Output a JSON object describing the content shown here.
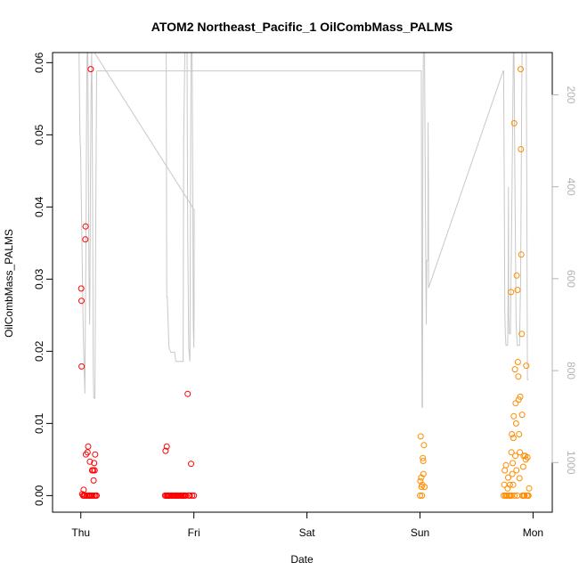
{
  "chart_data": {
    "type": "scatter",
    "title": "ATOM2 Northeast_Pacific_1 OilCombMass_PALMS",
    "xlabel": "Date",
    "ylabel": "OilCombMass_PALMS",
    "x_unit": "days",
    "x_ticks": [
      {
        "value": 0,
        "label": "Thu"
      },
      {
        "value": 1,
        "label": "Fri"
      },
      {
        "value": 2,
        "label": "Sat"
      },
      {
        "value": 3,
        "label": "Sun"
      },
      {
        "value": 4,
        "label": "Mon"
      }
    ],
    "xlim": [
      -0.25,
      4.17
    ],
    "ylim": [
      -0.0023,
      0.0614
    ],
    "y_ticks": [
      0.0,
      0.01,
      0.02,
      0.03,
      0.04,
      0.05,
      0.06
    ],
    "y_tick_labels": [
      "0.00",
      "0.01",
      "0.02",
      "0.03",
      "0.04",
      "0.05",
      "0.06"
    ],
    "y2lim": [
      1108,
      108
    ],
    "y2_ticks": [
      200,
      400,
      600,
      800,
      1000
    ],
    "y2_tick_labels": [
      "200",
      "400",
      "600",
      "800",
      "1000"
    ],
    "colors": {
      "series1": "#ff0000",
      "series2": "#ff8c00",
      "line": "#c8c8c8",
      "axis": "#000000",
      "right_axis": "#b3b3b3"
    },
    "series": [
      {
        "color": "#ff0000",
        "points": [
          [
            0.004,
            0.0287
          ],
          [
            0.006,
            0.027
          ],
          [
            0.007,
            0.0179
          ],
          [
            0.012,
            0.0002
          ],
          [
            0.02,
            0.0
          ],
          [
            0.025,
            0.0008
          ],
          [
            0.03,
            0.0
          ],
          [
            0.035,
            0.0
          ],
          [
            0.04,
            0.0355
          ],
          [
            0.042,
            0.0373
          ],
          [
            0.045,
            0.0057
          ],
          [
            0.05,
            0.0
          ],
          [
            0.055,
            0.0
          ],
          [
            0.06,
            0.006
          ],
          [
            0.065,
            0.0068
          ],
          [
            0.07,
            0.0
          ],
          [
            0.075,
            0.0
          ],
          [
            0.08,
            0.0047
          ],
          [
            0.085,
            0.0
          ],
          [
            0.088,
            0.0591
          ],
          [
            0.095,
            0.0
          ],
          [
            0.1,
            0.0035
          ],
          [
            0.105,
            0.0
          ],
          [
            0.11,
            0.0035
          ],
          [
            0.113,
            0.0021
          ],
          [
            0.118,
            0.0045
          ],
          [
            0.12,
            0.0
          ],
          [
            0.123,
            0.0035
          ],
          [
            0.127,
            0.0057
          ],
          [
            0.13,
            0.0
          ],
          [
            0.14,
            0.0
          ],
          [
            0.745,
            0.0
          ],
          [
            0.75,
            0.0062
          ],
          [
            0.755,
            0.0
          ],
          [
            0.76,
            0.0068
          ],
          [
            0.765,
            0.0
          ],
          [
            0.77,
            0.0
          ],
          [
            0.775,
            0.0
          ],
          [
            0.78,
            0.0
          ],
          [
            0.79,
            0.0
          ],
          [
            0.8,
            0.0
          ],
          [
            0.81,
            0.0
          ],
          [
            0.82,
            0.0
          ],
          [
            0.83,
            0.0
          ],
          [
            0.84,
            0.0
          ],
          [
            0.85,
            0.0
          ],
          [
            0.86,
            0.0
          ],
          [
            0.87,
            0.0
          ],
          [
            0.88,
            0.0
          ],
          [
            0.89,
            0.0
          ],
          [
            0.9,
            0.0
          ],
          [
            0.905,
            0.0
          ],
          [
            0.91,
            0.0
          ],
          [
            0.92,
            0.0
          ],
          [
            0.93,
            0.0
          ],
          [
            0.945,
            0.0141
          ],
          [
            0.955,
            0.0
          ],
          [
            0.965,
            0.0
          ],
          [
            0.975,
            0.0044
          ],
          [
            0.985,
            0.0
          ],
          [
            1.0,
            0.0
          ]
        ]
      },
      {
        "color": "#ff8c00",
        "points": [
          [
            3.0,
            0.0
          ],
          [
            3.003,
            0.002
          ],
          [
            3.006,
            0.0082
          ],
          [
            3.01,
            0.0025
          ],
          [
            3.013,
            0.0012
          ],
          [
            3.017,
            0.0
          ],
          [
            3.02,
            0.0015
          ],
          [
            3.025,
            0.0052
          ],
          [
            3.028,
            0.0048
          ],
          [
            3.03,
            0.003
          ],
          [
            3.035,
            0.007
          ],
          [
            3.04,
            0.0012
          ],
          [
            3.74,
            0.0
          ],
          [
            3.745,
            0.0015
          ],
          [
            3.75,
            0.0035
          ],
          [
            3.755,
            0.0
          ],
          [
            3.76,
            0.0042
          ],
          [
            3.765,
            0.0
          ],
          [
            3.77,
            0.0
          ],
          [
            3.775,
            0.001
          ],
          [
            3.78,
            0.0025
          ],
          [
            3.785,
            0.0
          ],
          [
            3.79,
            0.0
          ],
          [
            3.795,
            0.0015
          ],
          [
            3.8,
            0.0
          ],
          [
            3.805,
            0.0282
          ],
          [
            3.808,
            0.006
          ],
          [
            3.81,
            0.0
          ],
          [
            3.813,
            0.0085
          ],
          [
            3.816,
            0.003
          ],
          [
            3.82,
            0.0045
          ],
          [
            3.823,
            0.0015
          ],
          [
            3.826,
            0.008
          ],
          [
            3.83,
            0.011
          ],
          [
            3.833,
            0.0516
          ],
          [
            3.836,
            0.0
          ],
          [
            3.84,
            0.0175
          ],
          [
            3.843,
            0.0055
          ],
          [
            3.846,
            0.0128
          ],
          [
            3.85,
            0.01
          ],
          [
            3.853,
            0.0035
          ],
          [
            3.856,
            0.0305
          ],
          [
            3.86,
            0.0
          ],
          [
            3.863,
            0.0285
          ],
          [
            3.866,
            0.0185
          ],
          [
            3.87,
            0.0165
          ],
          [
            3.873,
            0.0133
          ],
          [
            3.876,
            0.0085
          ],
          [
            3.88,
            0.0024
          ],
          [
            3.883,
            0.006
          ],
          [
            3.886,
            0.0137
          ],
          [
            3.89,
            0.0591
          ],
          [
            3.893,
            0.048
          ],
          [
            3.896,
            0.0334
          ],
          [
            3.9,
            0.0224
          ],
          [
            3.903,
            0.0112
          ],
          [
            3.906,
            0.0
          ],
          [
            3.91,
            0.0
          ],
          [
            3.913,
            0.004
          ],
          [
            3.916,
            0.0055
          ],
          [
            3.92,
            0.0
          ],
          [
            3.925,
            0.0
          ],
          [
            3.93,
            0.0055
          ],
          [
            3.935,
            0.005
          ],
          [
            3.94,
            0.018
          ],
          [
            3.945,
            0.0
          ],
          [
            3.95,
            0.0053
          ],
          [
            3.955,
            0.0
          ],
          [
            3.96,
            0.0
          ],
          [
            3.965,
            0.001
          ]
        ]
      }
    ],
    "line_series": [
      [
        -0.016,
        108
      ],
      [
        -0.012,
        200
      ],
      [
        -0.008,
        280
      ],
      [
        -0.004,
        310
      ],
      [
        -0.002,
        320
      ],
      [
        0.02,
        700
      ],
      [
        0.03,
        800
      ],
      [
        0.036,
        850
      ],
      [
        0.04,
        700
      ],
      [
        0.046,
        500
      ],
      [
        0.052,
        200
      ],
      [
        0.056,
        108
      ],
      [
        0.062,
        108
      ],
      [
        0.066,
        300
      ],
      [
        0.072,
        600
      ],
      [
        0.078,
        700
      ],
      [
        0.08,
        650
      ],
      [
        0.085,
        400
      ],
      [
        0.09,
        200
      ],
      [
        0.096,
        108
      ],
      [
        0.1,
        200
      ],
      [
        0.105,
        500
      ],
      [
        0.11,
        800
      ],
      [
        0.115,
        860
      ],
      [
        0.125,
        860
      ],
      [
        0.13,
        600
      ],
      [
        0.136,
        300
      ],
      [
        0.14,
        150
      ],
      [
        0.142,
        148
      ],
      [
        3.0,
        148
      ],
      [
        3.012,
        148
      ],
      [
        3.015,
        600
      ],
      [
        3.018,
        880
      ],
      [
        3.022,
        880
      ],
      [
        3.025,
        300
      ],
      [
        3.03,
        108
      ],
      [
        3.04,
        108
      ],
      [
        3.045,
        320
      ],
      [
        3.05,
        500
      ],
      [
        3.055,
        700
      ],
      [
        3.06,
        560
      ],
      [
        3.07,
        560
      ],
      [
        3.072,
        260
      ],
      [
        3.075,
        400
      ],
      [
        3.076,
        620
      ],
      [
        3.736,
        148
      ],
      [
        3.74,
        148
      ],
      [
        3.745,
        400
      ],
      [
        3.75,
        670
      ],
      [
        3.755,
        720
      ],
      [
        3.76,
        745
      ],
      [
        3.775,
        745
      ],
      [
        3.78,
        600
      ],
      [
        3.782,
        400
      ],
      [
        3.785,
        680
      ],
      [
        3.79,
        720
      ],
      [
        3.8,
        720
      ],
      [
        3.81,
        500
      ],
      [
        3.82,
        250
      ],
      [
        3.826,
        108
      ],
      [
        3.832,
        108
      ],
      [
        3.84,
        400
      ],
      [
        3.85,
        700
      ],
      [
        3.86,
        745
      ],
      [
        3.88,
        745
      ],
      [
        3.89,
        600
      ],
      [
        3.895,
        400
      ],
      [
        3.9,
        200
      ],
      [
        3.903,
        108
      ],
      [
        3.94,
        108
      ],
      [
        3.945,
        400
      ],
      [
        3.95,
        820
      ],
      [
        3.96,
        820
      ]
    ],
    "line_series_2": [
      [
        0.742,
        108
      ],
      [
        0.755,
        108
      ],
      [
        0.76,
        640
      ],
      [
        0.765,
        640
      ],
      [
        0.77,
        680
      ],
      [
        0.78,
        750
      ],
      [
        0.795,
        760
      ],
      [
        0.8,
        760
      ],
      [
        0.815,
        760
      ],
      [
        0.83,
        760
      ],
      [
        0.84,
        780
      ],
      [
        0.85,
        780
      ],
      [
        0.88,
        780
      ],
      [
        0.9,
        780
      ],
      [
        0.905,
        780
      ],
      [
        0.91,
        300
      ],
      [
        0.92,
        108
      ],
      [
        0.93,
        108
      ],
      [
        0.94,
        108
      ],
      [
        0.945,
        500
      ],
      [
        0.955,
        750
      ],
      [
        0.965,
        780
      ],
      [
        0.975,
        108
      ],
      [
        0.985,
        108
      ],
      [
        0.99,
        400
      ],
      [
        0.995,
        700
      ],
      [
        1.0,
        750
      ],
      [
        1.002,
        650
      ],
      [
        1.003,
        450
      ]
    ],
    "line_series_3": [
      [
        -0.016,
        108
      ],
      [
        0.115,
        108
      ],
      [
        0.12,
        108
      ],
      [
        1.003,
        450
      ]
    ],
    "legend": "none",
    "grid": false
  }
}
